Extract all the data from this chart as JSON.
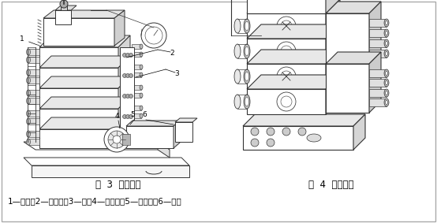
{
  "background_color": "#ffffff",
  "border_color": "#aaaaaa",
  "caption_left": "图  3  集成连接",
  "caption_right": "图  4  叠加连接",
  "bottom_text": "1—油管；2—集成块；3—阀；4—电动机；5—液压泵；6—油笩",
  "font_size_caption": 8.5,
  "font_size_bottom": 7.5,
  "font_size_label": 6.5
}
